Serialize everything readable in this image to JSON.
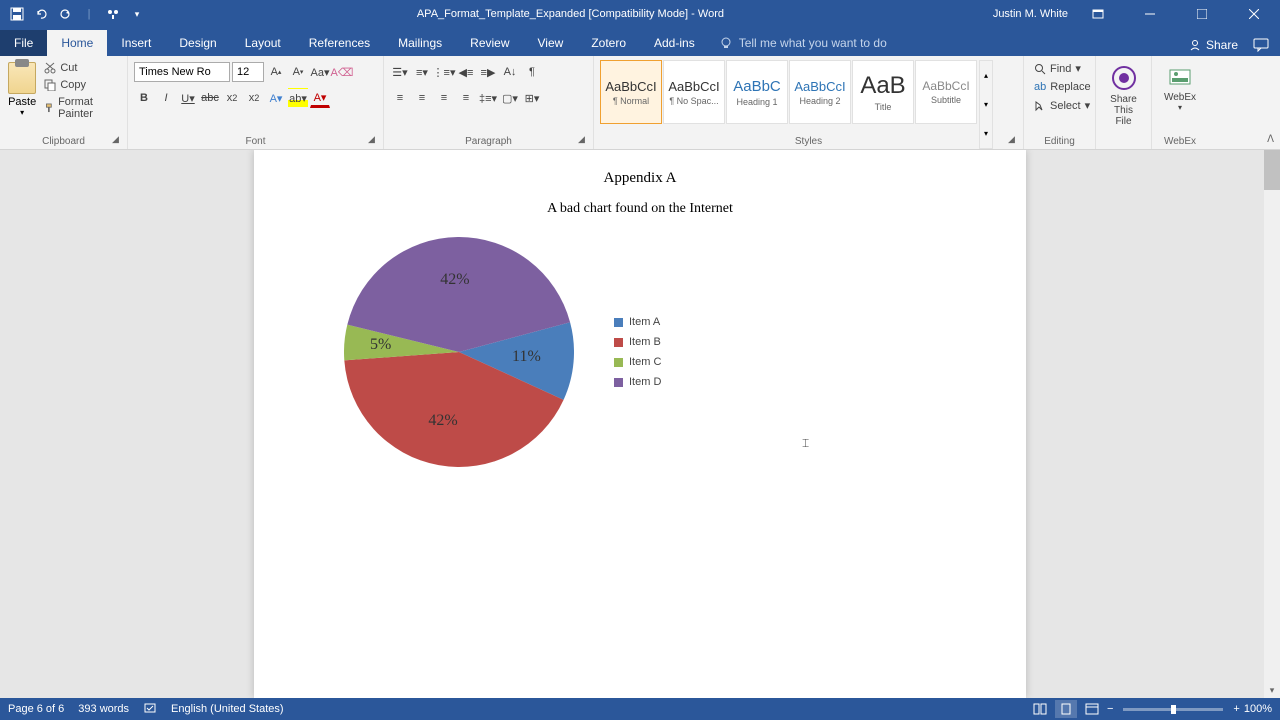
{
  "titlebar": {
    "title": "APA_Format_Template_Expanded [Compatibility Mode] - Word",
    "user": "Justin M. White"
  },
  "tabs": {
    "file": "File",
    "items": [
      "Home",
      "Insert",
      "Design",
      "Layout",
      "References",
      "Mailings",
      "Review",
      "View",
      "Zotero",
      "Add-ins"
    ],
    "active_index": 0,
    "tell_me": "Tell me what you want to do",
    "share": "Share"
  },
  "ribbon": {
    "clipboard": {
      "label": "Clipboard",
      "paste": "Paste",
      "cut": "Cut",
      "copy": "Copy",
      "format_painter": "Format Painter"
    },
    "font": {
      "label": "Font",
      "family": "Times New Ro",
      "size": "12"
    },
    "paragraph": {
      "label": "Paragraph"
    },
    "styles": {
      "label": "Styles",
      "items": [
        {
          "preview": "AaBbCcI",
          "name": "¶ Normal",
          "color": "#333",
          "size": 13
        },
        {
          "preview": "AaBbCcI",
          "name": "¶ No Spac...",
          "color": "#333",
          "size": 13
        },
        {
          "preview": "AaBbC",
          "name": "Heading 1",
          "color": "#2e74b5",
          "size": 15
        },
        {
          "preview": "AaBbCcI",
          "name": "Heading 2",
          "color": "#2e74b5",
          "size": 13
        },
        {
          "preview": "AaB",
          "name": "Title",
          "color": "#333",
          "size": 24
        },
        {
          "preview": "AaBbCcI",
          "name": "Subtitle",
          "color": "#888",
          "size": 12
        }
      ]
    },
    "editing": {
      "label": "Editing",
      "find": "Find",
      "replace": "Replace",
      "select": "Select"
    },
    "share_file": {
      "label": "Share\nThis File"
    },
    "webex": {
      "label": "WebEx"
    }
  },
  "document": {
    "heading": "Appendix A",
    "subtitle": "A bad chart found on the Internet",
    "chart": {
      "type": "pie",
      "slices": [
        {
          "label": "Item A",
          "value": 11,
          "percent": "11%",
          "color": "#4a7ebb"
        },
        {
          "label": "Item B",
          "value": 42,
          "percent": "42%",
          "color": "#be4b48"
        },
        {
          "label": "Item C",
          "value": 5,
          "percent": "5%",
          "color": "#98b954"
        },
        {
          "label": "Item D",
          "value": 42,
          "percent": "42%",
          "color": "#7d60a0"
        }
      ],
      "radius": 115,
      "start_angle_deg": -15,
      "label_fontsize": 16,
      "label_color": "#333333",
      "legend_fontsize": 11,
      "legend_color": "#444444",
      "legend_swatch_size": 9,
      "background_color": "#ffffff"
    }
  },
  "statusbar": {
    "page": "Page 6 of 6",
    "words": "393 words",
    "language": "English (United States)",
    "zoom": "100%"
  }
}
